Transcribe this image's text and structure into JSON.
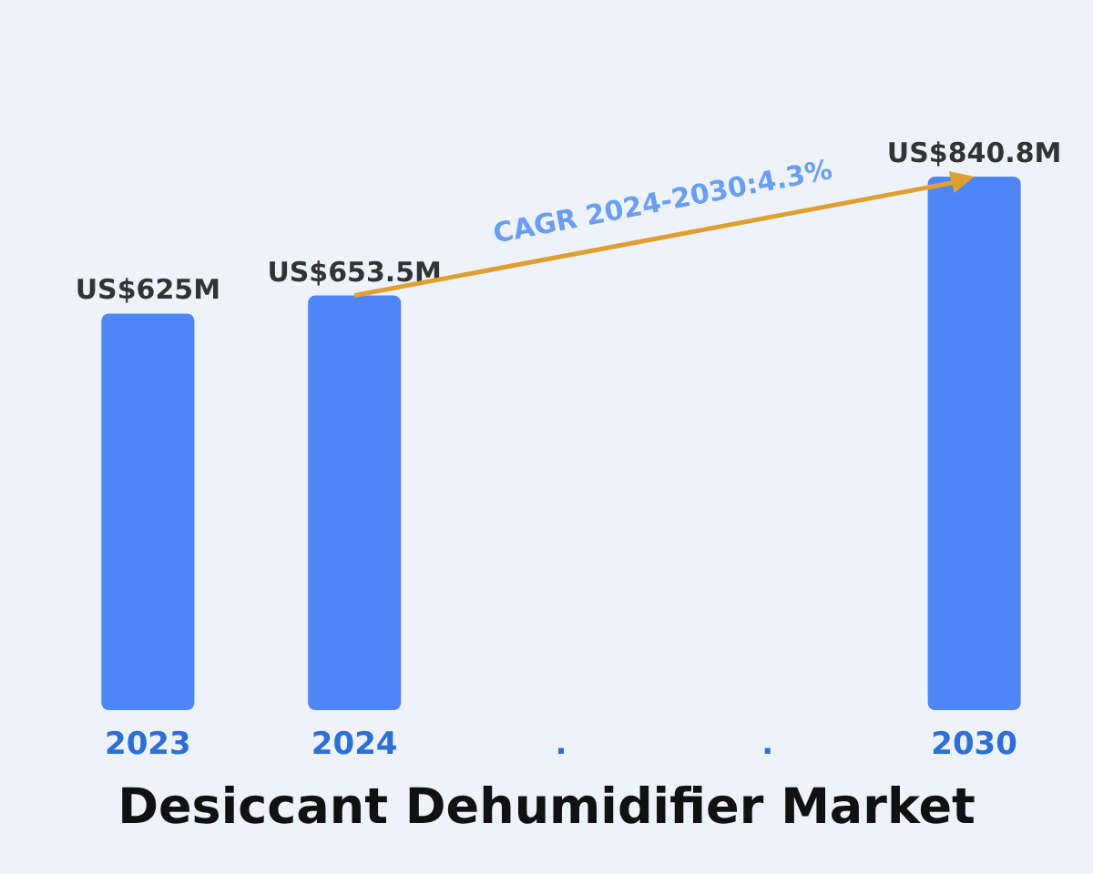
{
  "chart_data": {
    "type": "bar",
    "title": "Desiccant Dehumidifier Market",
    "categories": [
      "2023",
      "2024",
      ".",
      ".",
      "2030"
    ],
    "values": [
      625000000,
      653500000,
      null,
      null,
      840800000
    ],
    "value_labels": [
      "US$625M",
      "US$653.5M",
      null,
      null,
      "US$840.8M"
    ],
    "color": "#4f86f7",
    "annotations": [
      "CAGR 2024-2030:4.3%"
    ]
  }
}
